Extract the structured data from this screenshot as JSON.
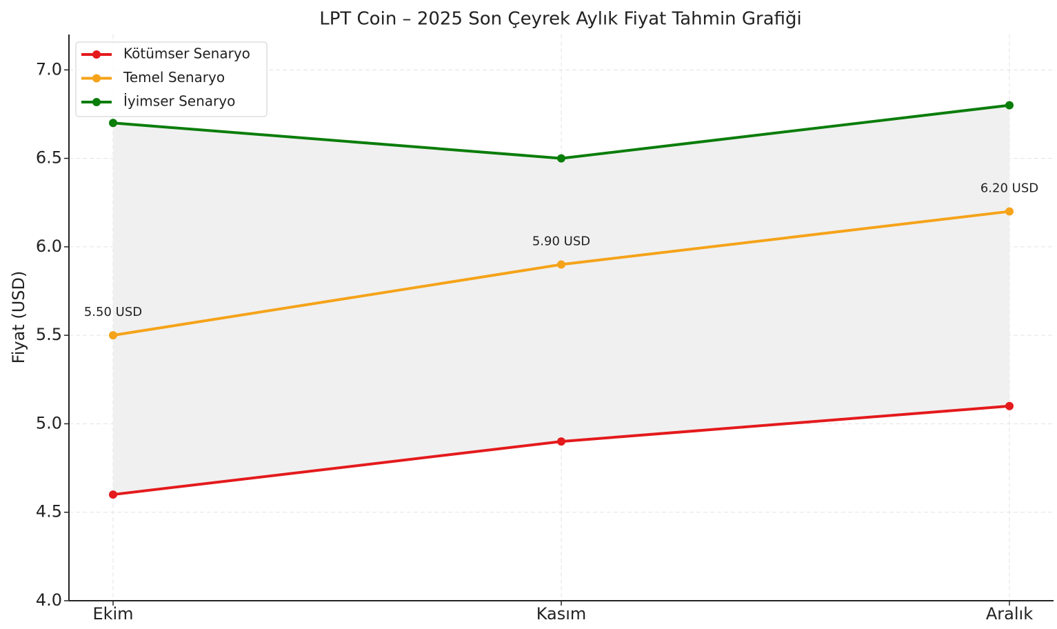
{
  "chart_data": {
    "type": "line",
    "title": "LPT Coin – 2025 Son Çeyrek Aylık Fiyat Tahmin Grafiği",
    "y_label": "Fiyat (USD)",
    "categories": [
      "Ekim",
      "Kasım",
      "Aralık"
    ],
    "series": [
      {
        "name": "Kötümser Senaryo",
        "color": "#e41a1c",
        "values": [
          4.6,
          4.9,
          5.1
        ]
      },
      {
        "name": "Temel Senaryo",
        "color": "#f5a31a",
        "values": [
          5.5,
          5.9,
          6.2
        ],
        "value_labels": [
          "5.50 USD",
          "5.90 USD",
          "6.20 USD"
        ]
      },
      {
        "name": "İyimser Senaryo",
        "color": "#0a7d0a",
        "values": [
          6.7,
          6.5,
          6.8
        ]
      }
    ],
    "ylim": [
      4.0,
      7.2
    ],
    "yticks": [
      {
        "value": 4,
        "label": "4.0"
      },
      {
        "value": 4.5,
        "label": "4.5"
      },
      {
        "value": 5,
        "label": "5.0"
      },
      {
        "value": 5.5,
        "label": "5.5"
      },
      {
        "value": 6,
        "label": "6.0"
      },
      {
        "value": 6.5,
        "label": "6.5"
      },
      {
        "value": 7,
        "label": "7.0"
      }
    ],
    "grid": true,
    "fill_between": true,
    "fill_color": "#f0f0f0",
    "legend": "upper left"
  }
}
